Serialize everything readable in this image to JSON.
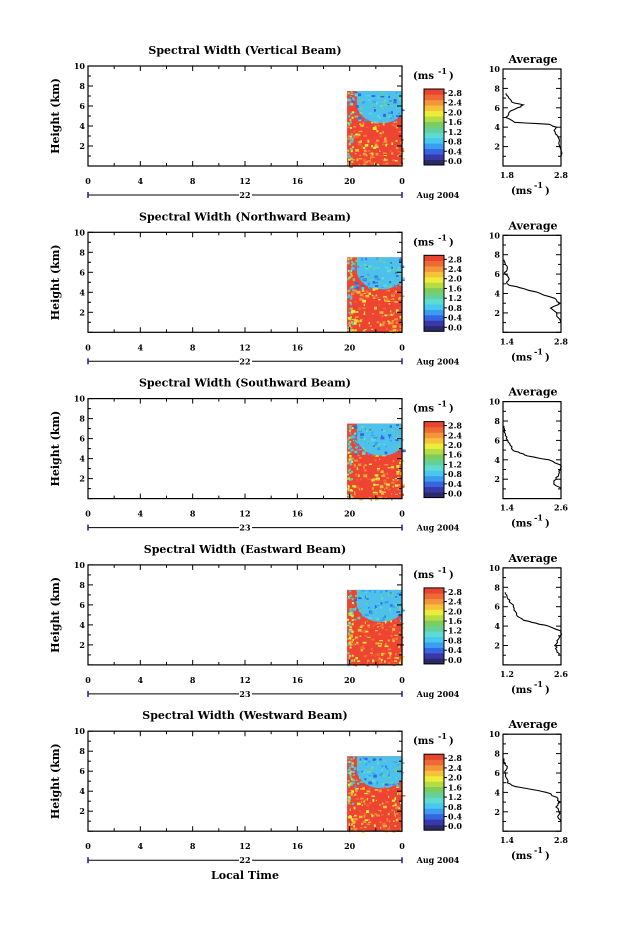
{
  "colors": {
    "scale": [
      "#2a2a6a",
      "#3a38a8",
      "#3366e0",
      "#3b9cf0",
      "#48c8ee",
      "#5fdad0",
      "#66d09a",
      "#7ccc5e",
      "#b6dc45",
      "#ecec3a",
      "#f5c23a",
      "#f3953a",
      "#ee6a35",
      "#e8442f"
    ],
    "image_bg": "#ee4434",
    "upper_layer": "#4ec0ec",
    "noise": "#78d06a"
  },
  "charts": [
    {
      "title": "Spectral Width (Vertical Beam)",
      "ylabel": "Height (km)",
      "unit_label": "(ms",
      "unit_exp": "-1",
      "y_ticks": [
        "10",
        "8",
        "6",
        "4",
        "2"
      ],
      "x_ticks": [
        "0",
        "4",
        "8",
        "12",
        "16",
        "20",
        "0"
      ],
      "day_label": "22",
      "month_year": "Aug 2004",
      "colorbar_ticks": [
        "2.8",
        "2.4",
        "2.0",
        "1.6",
        "1.2",
        "0.8",
        "0.4",
        "0.0"
      ],
      "avg_title": "Average",
      "avg_y_ticks": [
        "10",
        "8",
        "6",
        "4",
        "2"
      ],
      "avg_x_ticks": [
        "1.8",
        "2.8"
      ],
      "avg_unit": "(ms",
      "avg_unit_exp": "-1"
    },
    {
      "title": "Spectral Width (Northward Beam)",
      "ylabel": "Height (km)",
      "unit_label": "(ms",
      "unit_exp": "-1",
      "y_ticks": [
        "10",
        "8",
        "6",
        "4",
        "2"
      ],
      "x_ticks": [
        "0",
        "4",
        "8",
        "12",
        "16",
        "20",
        "0"
      ],
      "day_label": "22",
      "month_year": "Aug 2004",
      "colorbar_ticks": [
        "2.8",
        "2.4",
        "2.0",
        "1.6",
        "1.2",
        "0.8",
        "0.4",
        "0.0"
      ],
      "avg_title": "Average",
      "avg_y_ticks": [
        "10",
        "8",
        "6",
        "4",
        "2"
      ],
      "avg_x_ticks": [
        "1.4",
        "2.8"
      ],
      "avg_unit": "(ms",
      "avg_unit_exp": "-1"
    },
    {
      "title": "Spectral Width (Southward Beam)",
      "ylabel": "Height (km)",
      "unit_label": "(ms",
      "unit_exp": "-1",
      "y_ticks": [
        "10",
        "8",
        "6",
        "4",
        "2"
      ],
      "x_ticks": [
        "0",
        "4",
        "8",
        "12",
        "16",
        "20",
        "0"
      ],
      "day_label": "23",
      "month_year": "Aug 2004",
      "colorbar_ticks": [
        "2.8",
        "2.4",
        "2.0",
        "1.6",
        "1.2",
        "0.8",
        "0.4",
        "0.0"
      ],
      "avg_title": "Average",
      "avg_y_ticks": [
        "10",
        "8",
        "6",
        "4",
        "2"
      ],
      "avg_x_ticks": [
        "1.4",
        "2.6"
      ],
      "avg_unit": "(ms",
      "avg_unit_exp": "-1"
    },
    {
      "title": "Spectral Width (Eastward Beam)",
      "ylabel": "Height (km)",
      "unit_label": "(ms",
      "unit_exp": "-1",
      "y_ticks": [
        "10",
        "8",
        "6",
        "4",
        "2"
      ],
      "x_ticks": [
        "0",
        "4",
        "8",
        "12",
        "16",
        "20",
        "0"
      ],
      "day_label": "23",
      "month_year": "Aug 2004",
      "colorbar_ticks": [
        "2.8",
        "2.4",
        "2.0",
        "1.6",
        "1.2",
        "0.8",
        "0.4",
        "0.0"
      ],
      "avg_title": "Average",
      "avg_y_ticks": [
        "10",
        "8",
        "6",
        "4",
        "2"
      ],
      "avg_x_ticks": [
        "1.2",
        "2.6"
      ],
      "avg_unit": "(ms",
      "avg_unit_exp": "-1"
    },
    {
      "title": "Spectral Width (Westward Beam)",
      "ylabel": "Height (km)",
      "unit_label": "(ms",
      "unit_exp": "-1",
      "y_ticks": [
        "10",
        "8",
        "6",
        "4",
        "2"
      ],
      "x_ticks": [
        "0",
        "4",
        "8",
        "12",
        "16",
        "20",
        "0"
      ],
      "day_label": "22",
      "month_year": "Aug 2004",
      "colorbar_ticks": [
        "2.8",
        "2.4",
        "2.0",
        "1.6",
        "1.2",
        "0.8",
        "0.4",
        "0.0"
      ],
      "avg_title": "Average",
      "avg_y_ticks": [
        "10",
        "8",
        "6",
        "4",
        "2"
      ],
      "avg_x_ticks": [
        "1.4",
        "2.8"
      ],
      "avg_unit": "(ms",
      "avg_unit_exp": "-1"
    }
  ],
  "xlabel": "Local Time",
  "chart_data": [
    {
      "type": "heatmap",
      "title": "Spectral Width (Vertical Beam)",
      "ylabel": "Height (km)",
      "xlim": [
        0,
        24
      ],
      "ylim": [
        0,
        10
      ],
      "clim": [
        0.0,
        2.8
      ],
      "data_start_hour": 19.8,
      "top_km": 7.5,
      "layer_boundary_km": 4.5,
      "upper_value": 1.0,
      "lower_value": 2.8,
      "average_profile": {
        "xlim": [
          1.8,
          2.8
        ],
        "heights": [
          1,
          2,
          3,
          3.5,
          4,
          4.3,
          4.5,
          5,
          5.5,
          6,
          6.3,
          6.6,
          7,
          7.5
        ],
        "values": [
          2.8,
          2.78,
          2.75,
          2.7,
          2.72,
          2.6,
          2.0,
          1.85,
          1.9,
          2.05,
          2.15,
          1.95,
          1.9,
          1.85
        ]
      }
    },
    {
      "type": "heatmap",
      "title": "Spectral Width (Northward Beam)",
      "ylabel": "Height (km)",
      "xlim": [
        0,
        24
      ],
      "ylim": [
        0,
        10
      ],
      "clim": [
        0.0,
        2.8
      ],
      "data_start_hour": 19.8,
      "top_km": 7.5,
      "layer_boundary_km": 4.5,
      "upper_value": 1.0,
      "lower_value": 2.8,
      "average_profile": {
        "xlim": [
          1.4,
          2.8
        ],
        "heights": [
          1,
          2,
          2.5,
          3,
          3.5,
          4,
          4.5,
          4.8,
          5,
          5.5,
          6,
          6.5,
          7,
          7.5
        ],
        "values": [
          2.8,
          2.7,
          2.55,
          2.78,
          2.65,
          2.3,
          1.9,
          1.6,
          1.5,
          1.55,
          1.45,
          1.5,
          1.45,
          1.42
        ]
      }
    },
    {
      "type": "heatmap",
      "title": "Spectral Width (Southward Beam)",
      "ylabel": "Height (km)",
      "xlim": [
        0,
        24
      ],
      "ylim": [
        0,
        10
      ],
      "clim": [
        0.0,
        2.8
      ],
      "data_start_hour": 19.8,
      "top_km": 7.5,
      "layer_boundary_km": 4.5,
      "upper_value": 1.0,
      "lower_value": 2.8,
      "average_profile": {
        "xlim": [
          1.4,
          2.6
        ],
        "heights": [
          1,
          1.5,
          2,
          2.5,
          3,
          3.5,
          4,
          4.4,
          4.7,
          5,
          5.5,
          6,
          6.5,
          7,
          7.5
        ],
        "values": [
          2.6,
          2.45,
          2.5,
          2.55,
          2.6,
          2.58,
          2.35,
          1.9,
          1.75,
          1.6,
          1.55,
          1.5,
          1.45,
          1.42,
          1.42
        ]
      }
    },
    {
      "type": "heatmap",
      "title": "Spectral Width (Eastward Beam)",
      "ylabel": "Height (km)",
      "xlim": [
        0,
        24
      ],
      "ylim": [
        0,
        10
      ],
      "clim": [
        0.0,
        2.8
      ],
      "data_start_hour": 19.8,
      "top_km": 7.5,
      "layer_boundary_km": 4.5,
      "upper_value": 1.0,
      "lower_value": 2.8,
      "average_profile": {
        "xlim": [
          1.2,
          2.6
        ],
        "heights": [
          1,
          1.5,
          2,
          2.5,
          3,
          3.5,
          4,
          4.3,
          4.6,
          5,
          5.5,
          6,
          6.5,
          7,
          7.5
        ],
        "values": [
          2.55,
          2.5,
          2.45,
          2.5,
          2.58,
          2.6,
          2.3,
          2.0,
          1.7,
          1.55,
          1.5,
          1.45,
          1.35,
          1.3,
          1.25
        ]
      }
    },
    {
      "type": "heatmap",
      "title": "Spectral Width (Westward Beam)",
      "ylabel": "Height (km)",
      "xlim": [
        0,
        24
      ],
      "ylim": [
        0,
        10
      ],
      "clim": [
        0.0,
        2.8
      ],
      "data_start_hour": 19.8,
      "top_km": 7.5,
      "layer_boundary_km": 4.5,
      "upper_value": 1.0,
      "lower_value": 2.8,
      "average_profile": {
        "xlim": [
          1.4,
          2.8
        ],
        "heights": [
          1,
          1.5,
          2,
          2.5,
          3,
          3.5,
          4,
          4.3,
          4.6,
          5,
          5.5,
          6,
          6.5,
          7,
          7.5
        ],
        "values": [
          2.8,
          2.72,
          2.75,
          2.68,
          2.78,
          2.7,
          2.45,
          2.1,
          1.7,
          1.5,
          1.48,
          1.45,
          1.5,
          1.45,
          1.42
        ]
      }
    }
  ]
}
